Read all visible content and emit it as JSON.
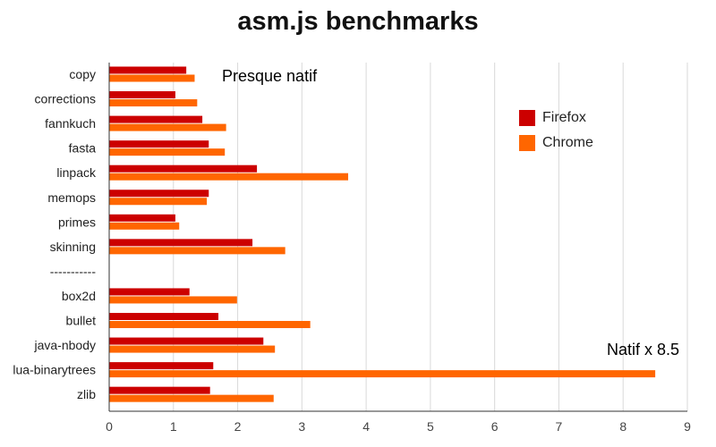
{
  "chart_data": {
    "type": "bar",
    "orientation": "horizontal",
    "title": "asm.js benchmarks",
    "categories": [
      "copy",
      "corrections",
      "fannkuch",
      "fasta",
      "linpack",
      "memops",
      "primes",
      "skinning",
      "-----------",
      "box2d",
      "bullet",
      "java-nbody",
      "lua-binarytrees",
      "zlib"
    ],
    "series": [
      {
        "name": "Firefox",
        "color": "#cc0000",
        "values": [
          1.2,
          1.03,
          1.45,
          1.55,
          2.3,
          1.55,
          1.03,
          2.23,
          null,
          1.25,
          1.7,
          2.4,
          1.62,
          1.57
        ]
      },
      {
        "name": "Chrome",
        "color": "#ff6600",
        "values": [
          1.33,
          1.37,
          1.82,
          1.8,
          3.72,
          1.52,
          1.09,
          2.74,
          null,
          1.99,
          3.13,
          2.58,
          8.5,
          2.56
        ]
      }
    ],
    "xlim": [
      0,
      9
    ],
    "xticks": [
      "0",
      "1",
      "2",
      "3",
      "4",
      "5",
      "6",
      "7",
      "8",
      "9"
    ],
    "grid": true,
    "legend_position": "top-right",
    "annotations": [
      "Presque natif",
      "Natif x 8.5"
    ]
  }
}
